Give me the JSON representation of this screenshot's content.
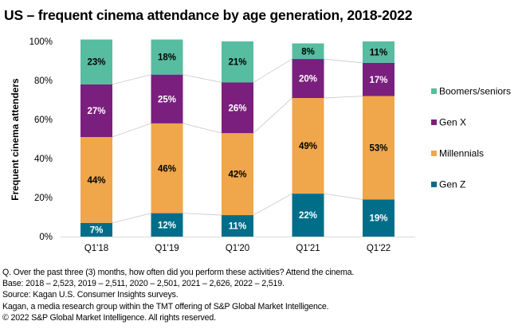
{
  "chart_data": {
    "type": "bar",
    "stacked": true,
    "normalized": true,
    "title": "US – frequent cinema attendance by age generation, 2018-2022",
    "xlabel": "",
    "ylabel": "Frequent cinema attenders",
    "ylim": [
      0,
      100
    ],
    "yticks": [
      "0%",
      "20%",
      "40%",
      "60%",
      "80%",
      "100%"
    ],
    "ytick_values": [
      0,
      20,
      40,
      60,
      80,
      100
    ],
    "categories": [
      "Q1'18",
      "Q1'19",
      "Q1'20",
      "Q1'21",
      "Q1'22"
    ],
    "series": [
      {
        "name": "Gen Z",
        "color": "#006E89",
        "label_color": "#ffffff",
        "values": [
          7,
          12,
          11,
          22,
          19
        ]
      },
      {
        "name": "Millennials",
        "color": "#F0A64A",
        "label_color": "#000000",
        "values": [
          44,
          46,
          42,
          49,
          53
        ]
      },
      {
        "name": "Gen X",
        "color": "#7A1F7E",
        "label_color": "#ffffff",
        "values": [
          27,
          25,
          26,
          20,
          17
        ]
      },
      {
        "name": "Boomers/seniors",
        "color": "#57BDA0",
        "label_color": "#000000",
        "values": [
          23,
          18,
          21,
          8,
          11
        ]
      }
    ],
    "legend": {
      "position": "right",
      "order": [
        "Boomers/seniors",
        "Gen X",
        "Millennials",
        "Gen Z"
      ]
    },
    "connector_lines": true,
    "grid": false
  },
  "footnotes": [
    "Q. Over the past three (3) months, how often did you perform these activities? Attend the cinema.",
    "Base: 2018 – 2,523, 2019 – 2,511, 2020 – 2,501, 2021 – 2,626, 2022 – 2,519.",
    "Source: Kagan U.S. Consumer Insights surveys.",
    "Kagan, a media research group within the TMT offering of S&P Global Market Intelligence.",
    "© 2022 S&P Global Market Intelligence.  All rights reserved."
  ]
}
